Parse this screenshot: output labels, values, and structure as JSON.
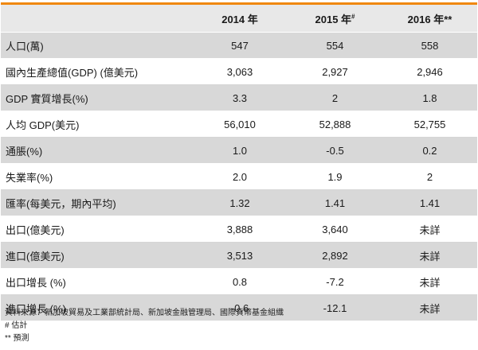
{
  "table": {
    "headers": [
      {
        "text": "",
        "sup": ""
      },
      {
        "text": "2014 年",
        "sup": ""
      },
      {
        "text": "2015 年",
        "sup": "#"
      },
      {
        "text": "2016 年**",
        "sup": ""
      }
    ],
    "rows": [
      {
        "label": "人口(萬)",
        "values": [
          "547",
          "554",
          "558"
        ]
      },
      {
        "label": "國內生產總值(GDP) (億美元)",
        "values": [
          "3,063",
          "2,927",
          "2,946"
        ]
      },
      {
        "label": "GDP 實質增長(%)",
        "values": [
          "3.3",
          "2",
          "1.8"
        ]
      },
      {
        "label": "人均 GDP(美元)",
        "values": [
          "56,010",
          "52,888",
          "52,755"
        ]
      },
      {
        "label": "通脹(%)",
        "values": [
          "1.0",
          "-0.5",
          "0.2"
        ]
      },
      {
        "label": "失業率(%)",
        "values": [
          "2.0",
          "1.9",
          "2"
        ]
      },
      {
        "label": "匯率(每美元，期內平均)",
        "values": [
          "1.32",
          "1.41",
          "1.41"
        ]
      },
      {
        "label": "出口(億美元)",
        "values": [
          "3,888",
          "3,640",
          "未詳"
        ]
      },
      {
        "label": "進口(億美元)",
        "values": [
          "3,513",
          "2,892",
          "未詳"
        ]
      },
      {
        "label": "出口增長 (%)",
        "values": [
          "0.8",
          "-7.2",
          "未詳"
        ]
      },
      {
        "label": "進口增長 (%)",
        "values": [
          "-0.6",
          "-12.1",
          "未詳"
        ]
      }
    ]
  },
  "notes": {
    "source": "資料來源：新加坡貿易及工業部統計局、新加坡金融管理局、國際貨幣基金組織",
    "estimate": "# 估計",
    "forecast": "** 預測"
  },
  "colors": {
    "header_rule": "#f0880e",
    "header_bg": "#e8e8e8",
    "band_bg": "#d8d8d8"
  }
}
